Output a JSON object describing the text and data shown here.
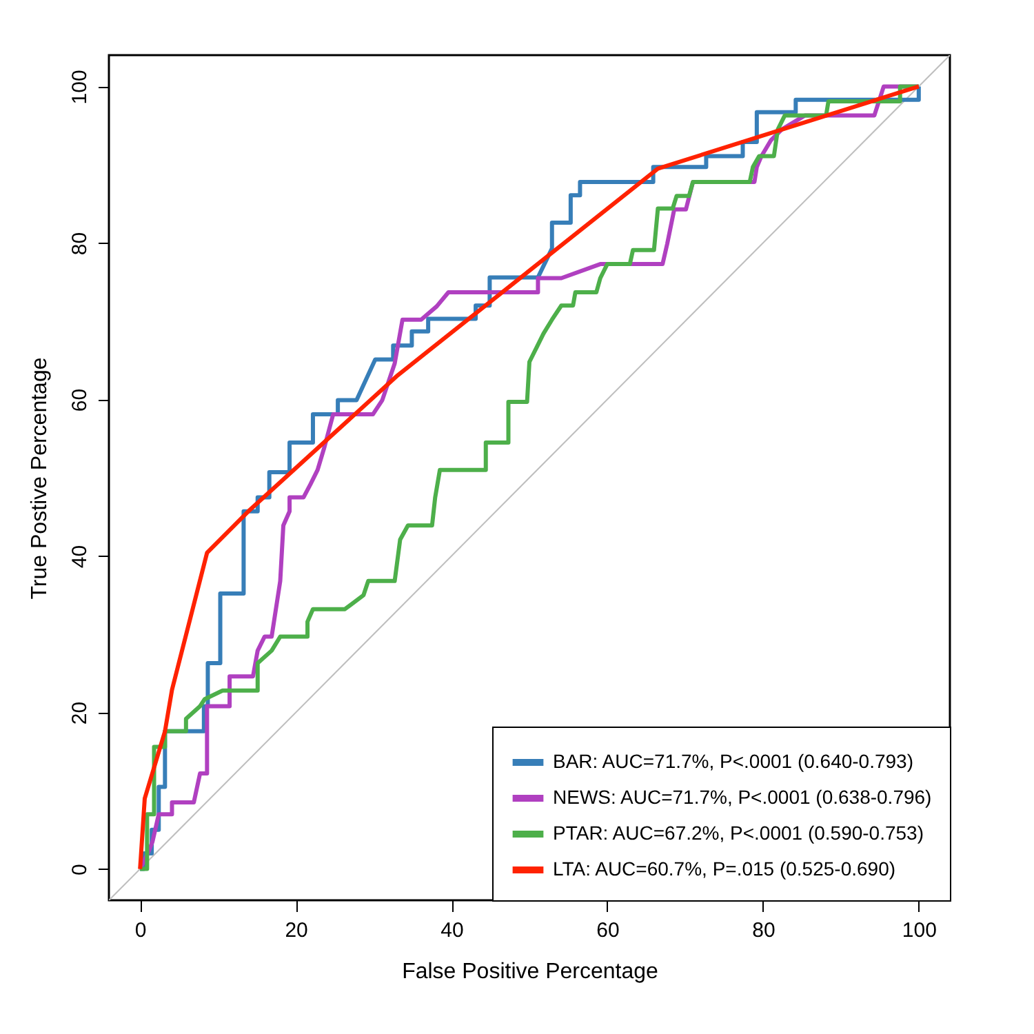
{
  "chart_data": {
    "type": "line",
    "xlabel": "False Positive Percentage",
    "ylabel": "True Postive Percentage",
    "xlim": [
      -4,
      104
    ],
    "ylim": [
      -4,
      104
    ],
    "xticks": [
      0,
      20,
      40,
      60,
      80,
      100
    ],
    "yticks": [
      0,
      20,
      40,
      60,
      80,
      100
    ],
    "grid": false,
    "legend": "bottom right",
    "marker": "none",
    "line_style": "solid",
    "series": [
      {
        "color": "#bebebe",
        "x": [
          -4,
          104
        ],
        "values": [
          -4,
          104
        ]
      },
      {
        "name": "BAR: AUC=71.7%, P<.0001 (0.640-0.793)",
        "color": "#377eb8",
        "x": [
          0,
          0.5,
          0.5,
          1.5,
          1.5,
          2.4,
          2.4,
          3.2,
          3.2,
          8.2,
          8.2,
          8.7,
          8.7,
          10.3,
          10.3,
          13.3,
          13.3,
          15.1,
          15.1,
          16.6,
          16.6,
          19.2,
          19.2,
          22.2,
          22.2,
          25.4,
          25.4,
          27.8,
          30.2,
          32.5,
          32.5,
          34.9,
          34.9,
          37,
          37,
          43.1,
          43.1,
          44.9,
          44.9,
          51.1,
          52.9,
          52.9,
          55.3,
          55.3,
          56.5,
          56.5,
          65.9,
          65.9,
          72.7,
          72.7,
          77.4,
          77.4,
          79.2,
          79.2,
          84.2,
          84.2,
          100,
          100
        ],
        "values": [
          0,
          0,
          2,
          2,
          5,
          5,
          10.5,
          10.5,
          17.6,
          17.6,
          20.8,
          20.8,
          26.3,
          26.3,
          35.2,
          35.2,
          45.7,
          45.7,
          47.5,
          47.5,
          50.7,
          50.7,
          54.5,
          54.5,
          58.1,
          58.1,
          59.9,
          59.9,
          65.1,
          65.1,
          66.9,
          66.9,
          68.7,
          68.7,
          70.3,
          70.3,
          72,
          72,
          75.6,
          75.6,
          79.3,
          82.6,
          82.6,
          86.1,
          86.1,
          87.8,
          87.8,
          89.7,
          89.7,
          91.1,
          91.1,
          92.9,
          92.9,
          96.7,
          96.7,
          98.3,
          98.3,
          100
        ]
      },
      {
        "name": "NEWS: AUC=71.7%, P<.0001 (0.638-0.796)",
        "color": "#b040c0",
        "x": [
          0,
          1,
          1.6,
          2.4,
          2.4,
          4.1,
          4.1,
          6.9,
          7.7,
          8.6,
          8.6,
          11.5,
          11.5,
          14.5,
          15.1,
          16,
          16.9,
          18,
          18.4,
          19.2,
          19.2,
          21,
          21.9,
          22.8,
          23.7,
          24.8,
          29.9,
          31.1,
          32.7,
          33.7,
          36.1,
          38.1,
          39.6,
          51.1,
          51.1,
          54.1,
          59.1,
          67.1,
          67.7,
          68.6,
          70.1,
          71,
          78.9,
          79.2,
          79.8,
          81,
          82.4,
          85.4,
          94.3,
          95.5,
          97.8,
          100
        ],
        "values": [
          0,
          2,
          3.5,
          7,
          7,
          7,
          8.5,
          8.5,
          12.2,
          12.2,
          20.8,
          20.8,
          24.6,
          24.6,
          27.9,
          29.7,
          29.7,
          36.8,
          43.9,
          45.7,
          47.5,
          47.5,
          49.2,
          51,
          54,
          58.1,
          58.1,
          59.9,
          64.6,
          70.2,
          70.2,
          71.9,
          73.7,
          73.7,
          75.5,
          75.5,
          77.3,
          77.3,
          79.9,
          84.3,
          84.3,
          87.8,
          87.8,
          89.7,
          91.1,
          93.1,
          94.5,
          96.3,
          96.3,
          100,
          100,
          100
        ]
      },
      {
        "name": "PTAR: AUC=67.2%, P<.0001 (0.590-0.753)",
        "color": "#4daf4a",
        "x": [
          0,
          0.9,
          0.9,
          1.8,
          1.8,
          3.2,
          3.2,
          5.9,
          5.9,
          7.7,
          8.3,
          10.6,
          15.1,
          15.1,
          16.9,
          18,
          21.5,
          21.5,
          22.2,
          26.3,
          28.7,
          29.3,
          32.7,
          33.4,
          34.4,
          37.5,
          37.9,
          38.5,
          44.4,
          44.4,
          47.3,
          47.3,
          49.7,
          50,
          50.9,
          51.8,
          52.9,
          54.1,
          55.6,
          55.9,
          58.6,
          59.1,
          60,
          62.9,
          63.3,
          66,
          66.5,
          68.4,
          68.9,
          70.5,
          71,
          78.3,
          78.7,
          79.5,
          81.4,
          81.9,
          82.8,
          88.1,
          88.4,
          97.6,
          97.6,
          100
        ],
        "values": [
          0,
          0,
          7,
          7,
          15.6,
          15.6,
          17.6,
          17.6,
          19.2,
          20.8,
          21.7,
          22.8,
          22.8,
          26.3,
          27.9,
          29.7,
          29.7,
          31.6,
          33.2,
          33.2,
          35,
          36.8,
          36.8,
          42.1,
          43.9,
          43.9,
          47.5,
          51,
          51,
          54.5,
          54.5,
          59.7,
          59.7,
          64.8,
          66.6,
          68.4,
          70.2,
          72,
          72,
          73.7,
          73.7,
          75.5,
          77.3,
          77.3,
          79.1,
          79.1,
          84.4,
          84.4,
          86,
          86,
          87.8,
          87.8,
          89.7,
          91.1,
          91.1,
          94.5,
          96.3,
          96.3,
          98.1,
          98.1,
          100,
          100
        ]
      },
      {
        "name": "LTA: AUC=60.7%, P=.015 (0.525-0.690)",
        "color": "#ff2200",
        "x": [
          0,
          0.6,
          3.2,
          4.1,
          8.6,
          13.9,
          33.1,
          66.5,
          100
        ],
        "values": [
          0,
          9,
          17.6,
          22.9,
          40.4,
          45.7,
          63.1,
          89.5,
          100
        ]
      }
    ]
  }
}
